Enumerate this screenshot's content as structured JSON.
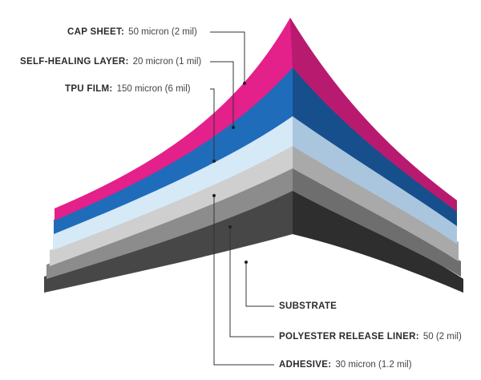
{
  "colors": {
    "cap": "#e4208a",
    "cap_dark": "#b81a6f",
    "self_healing": "#1f6cba",
    "self_healing_dark": "#174f8c",
    "tpu": "#d6e9f7",
    "tpu_dark": "#a9c6de",
    "adhesive": "#cfcfcf",
    "adhesive_dark": "#a9a9a9",
    "liner": "#8c8c8c",
    "liner_dark": "#6e6e6e",
    "substrate": "#474747",
    "substrate_dark": "#2e2e2e",
    "leader": "#333333"
  },
  "layers": {
    "cap_sheet": {
      "name": "CAP SHEET:",
      "value": "50 micron (2 mil)"
    },
    "self_healing": {
      "name": "SELF-HEALING LAYER:",
      "value": "20 micron (1 mil)"
    },
    "tpu_film": {
      "name": "TPU FILM:",
      "value": "150 micron (6 mil)"
    },
    "substrate": {
      "name": "SUBSTRATE",
      "value": ""
    },
    "polyester_liner": {
      "name": "POLYESTER RELEASE LINER:",
      "value": "50 (2 mil)"
    },
    "adhesive": {
      "name": "ADHESIVE:",
      "value": "30 micron (1.2 mil)"
    }
  }
}
